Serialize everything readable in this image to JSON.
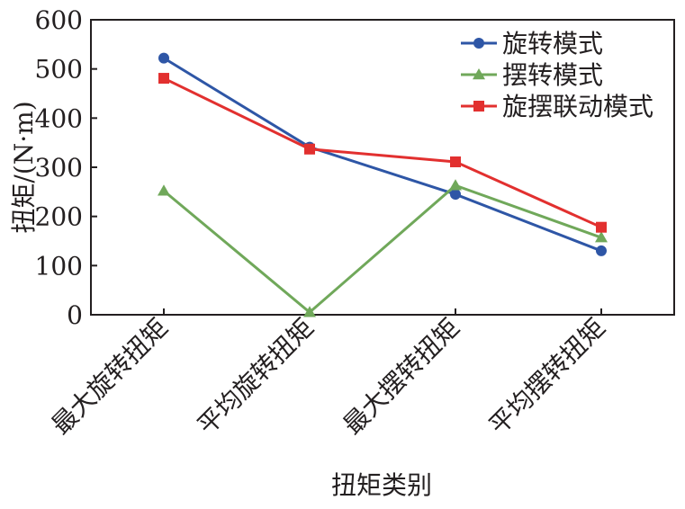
{
  "chart_data": {
    "type": "line",
    "title": "",
    "xlabel": "扭矩类别",
    "ylabel": "扭矩/(N·m)",
    "categories": [
      "最大旋转扭矩",
      "平均旋转扭矩",
      "最大摆转扭矩",
      "平均摆转扭矩"
    ],
    "ylim": [
      0,
      600
    ],
    "yticks": [
      0,
      100,
      200,
      300,
      400,
      500,
      600
    ],
    "grid": false,
    "legend_position": "top-right",
    "series": [
      {
        "name": "旋转模式",
        "values": [
          522,
          341,
          245,
          130
        ],
        "color": "#2e56a6",
        "marker": "circle"
      },
      {
        "name": "摆转模式",
        "values": [
          252,
          5,
          263,
          157
        ],
        "color": "#70a85a",
        "marker": "triangle"
      },
      {
        "name": "旋摆联动模式",
        "values": [
          481,
          337,
          311,
          178
        ],
        "color": "#e2302f",
        "marker": "square"
      }
    ]
  }
}
